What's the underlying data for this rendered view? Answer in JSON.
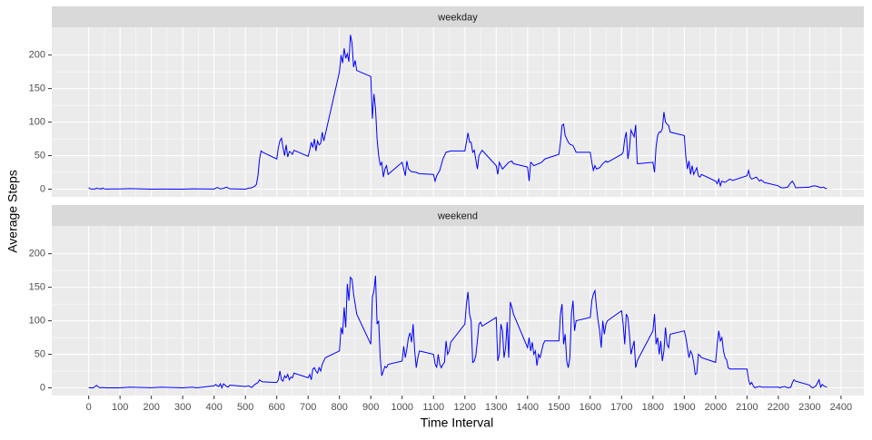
{
  "chart_data": {
    "type": "line",
    "xlabel": "Time Interval",
    "ylabel": "Average Steps",
    "color": "#0000ff",
    "xlim": [
      -117.75,
      2472.75
    ],
    "ylim": [
      -11.5,
      241.5
    ],
    "xticks": [
      0,
      100,
      200,
      300,
      400,
      500,
      600,
      700,
      800,
      900,
      1000,
      1100,
      1200,
      1300,
      1400,
      1500,
      1600,
      1700,
      1800,
      1900,
      2000,
      2100,
      2200,
      2300,
      2400
    ],
    "yticks": [
      0,
      50,
      100,
      150,
      200
    ],
    "grid": true,
    "minor_grid": true,
    "panels": [
      {
        "title": "weekday",
        "x": [
          0,
          5,
          10,
          15,
          20,
          25,
          30,
          35,
          40,
          45,
          50,
          55,
          100,
          130,
          200,
          230,
          300,
          330,
          400,
          410,
          420,
          430,
          440,
          450,
          500,
          510,
          520,
          530,
          535,
          540,
          545,
          550,
          555,
          600,
          605,
          610,
          615,
          620,
          625,
          630,
          635,
          640,
          645,
          650,
          655,
          700,
          705,
          710,
          715,
          720,
          725,
          730,
          735,
          740,
          745,
          750,
          755,
          800,
          805,
          810,
          815,
          820,
          825,
          830,
          835,
          840,
          845,
          850,
          855,
          900,
          905,
          910,
          915,
          920,
          925,
          930,
          935,
          940,
          945,
          950,
          955,
          1000,
          1005,
          1010,
          1015,
          1020,
          1030,
          1045,
          1055,
          1100,
          1105,
          1110,
          1120,
          1130,
          1140,
          1155,
          1200,
          1205,
          1210,
          1215,
          1220,
          1225,
          1230,
          1240,
          1245,
          1255,
          1300,
          1305,
          1310,
          1320,
          1330,
          1340,
          1350,
          1355,
          1400,
          1405,
          1410,
          1415,
          1420,
          1430,
          1445,
          1455,
          1500,
          1505,
          1510,
          1515,
          1520,
          1530,
          1535,
          1545,
          1555,
          1600,
          1605,
          1610,
          1615,
          1620,
          1630,
          1640,
          1650,
          1655,
          1700,
          1705,
          1710,
          1715,
          1720,
          1725,
          1730,
          1740,
          1745,
          1750,
          1755,
          1800,
          1805,
          1810,
          1815,
          1820,
          1825,
          1830,
          1835,
          1840,
          1845,
          1850,
          1855,
          1900,
          1905,
          1910,
          1915,
          1920,
          1925,
          1930,
          1940,
          1945,
          1950,
          1955,
          2000,
          2005,
          2010,
          2015,
          2020,
          2030,
          2045,
          2055,
          2100,
          2105,
          2110,
          2115,
          2120,
          2130,
          2140,
          2145,
          2155,
          2200,
          2205,
          2210,
          2220,
          2230,
          2240,
          2245,
          2250,
          2255,
          2300,
          2305,
          2315,
          2325,
          2335,
          2345,
          2350,
          2355
        ],
        "values": [
          2.3,
          0.4,
          0.2,
          0.2,
          0.1,
          1.6,
          0.6,
          1,
          0,
          1.7,
          0.4,
          0.1,
          0.4,
          0.8,
          0,
          0.2,
          0,
          0.5,
          0.2,
          2.5,
          0.4,
          1.2,
          3,
          0.5,
          0,
          1.5,
          2,
          4.5,
          7,
          20,
          45,
          57,
          55,
          45,
          62,
          72,
          76,
          62,
          50,
          66,
          48,
          56,
          55,
          52,
          58,
          49,
          58,
          70,
          62,
          75,
          57,
          72,
          66,
          68,
          85,
          72,
          82,
          175,
          200,
          188,
          210,
          195,
          202,
          190,
          230,
          218,
          182,
          192,
          177,
          168,
          105,
          142,
          120,
          75,
          50,
          36,
          40,
          18,
          30,
          35,
          22,
          40,
          30,
          20,
          42,
          30,
          26,
          25,
          23,
          22,
          12,
          20,
          28,
          45,
          55,
          57,
          57,
          70,
          84,
          70,
          70,
          55,
          58,
          30,
          50,
          58,
          35,
          22,
          40,
          30,
          35,
          40,
          42,
          38,
          33,
          12,
          40,
          38,
          35,
          37,
          40,
          45,
          52,
          70,
          95,
          97,
          80,
          70,
          67,
          65,
          55,
          55,
          40,
          28,
          35,
          30,
          32,
          38,
          42,
          40,
          52,
          55,
          75,
          85,
          45,
          60,
          88,
          78,
          96,
          38,
          38,
          40,
          25,
          63,
          80,
          85,
          85,
          90,
          115,
          100,
          97,
          95,
          85,
          80,
          48,
          30,
          42,
          22,
          35,
          22,
          32,
          20,
          18,
          22,
          12,
          8,
          15,
          5,
          12,
          10,
          15,
          13,
          20,
          28,
          18,
          15,
          16,
          18,
          12,
          14,
          10,
          5,
          3,
          2,
          2,
          3,
          10,
          12,
          8,
          2,
          3,
          4,
          5,
          4,
          2,
          3,
          1,
          1
        ]
      },
      {
        "title": "weekend",
        "x": [
          0,
          5,
          15,
          25,
          35,
          45,
          55,
          100,
          130,
          200,
          230,
          300,
          330,
          345,
          400,
          405,
          410,
          415,
          420,
          425,
          430,
          440,
          445,
          450,
          500,
          510,
          520,
          530,
          540,
          545,
          550,
          555,
          600,
          605,
          610,
          615,
          620,
          625,
          630,
          635,
          640,
          645,
          650,
          655,
          700,
          705,
          710,
          715,
          720,
          725,
          730,
          735,
          740,
          745,
          750,
          755,
          800,
          805,
          810,
          815,
          820,
          825,
          830,
          835,
          840,
          845,
          850,
          855,
          900,
          905,
          910,
          915,
          920,
          925,
          930,
          935,
          940,
          945,
          950,
          955,
          1000,
          1005,
          1010,
          1015,
          1020,
          1025,
          1030,
          1035,
          1040,
          1045,
          1050,
          1055,
          1100,
          1105,
          1110,
          1115,
          1120,
          1125,
          1130,
          1135,
          1140,
          1145,
          1150,
          1155,
          1200,
          1205,
          1210,
          1215,
          1220,
          1225,
          1230,
          1235,
          1240,
          1245,
          1250,
          1255,
          1300,
          1305,
          1310,
          1315,
          1320,
          1325,
          1330,
          1335,
          1340,
          1345,
          1350,
          1355,
          1400,
          1405,
          1410,
          1415,
          1420,
          1425,
          1430,
          1435,
          1440,
          1445,
          1450,
          1455,
          1500,
          1505,
          1510,
          1515,
          1520,
          1525,
          1530,
          1535,
          1540,
          1545,
          1550,
          1555,
          1600,
          1605,
          1610,
          1615,
          1620,
          1625,
          1630,
          1635,
          1640,
          1645,
          1650,
          1655,
          1700,
          1705,
          1710,
          1715,
          1720,
          1725,
          1730,
          1735,
          1740,
          1745,
          1750,
          1755,
          1800,
          1805,
          1810,
          1815,
          1820,
          1825,
          1830,
          1835,
          1840,
          1845,
          1850,
          1855,
          1900,
          1905,
          1910,
          1915,
          1920,
          1925,
          1930,
          1935,
          1940,
          1945,
          1950,
          1955,
          2000,
          2005,
          2010,
          2015,
          2020,
          2025,
          2030,
          2035,
          2040,
          2045,
          2050,
          2055,
          2100,
          2105,
          2110,
          2115,
          2120,
          2125,
          2130,
          2140,
          2150,
          2155,
          2200,
          2205,
          2210,
          2220,
          2230,
          2240,
          2245,
          2250,
          2255,
          2300,
          2305,
          2310,
          2320,
          2330,
          2335,
          2340,
          2345,
          2350,
          2355
        ],
        "values": [
          0.2,
          0,
          0,
          3.7,
          0,
          0.5,
          0,
          0,
          1,
          0.1,
          1,
          0,
          1,
          0,
          3,
          5,
          3,
          2,
          6,
          0,
          6,
          2,
          1,
          4,
          2,
          3,
          0.5,
          5,
          8,
          12,
          10,
          9,
          8,
          12,
          25,
          12,
          10,
          18,
          15,
          20,
          12,
          16,
          15,
          22,
          15,
          20,
          12,
          28,
          30,
          25,
          22,
          30,
          25,
          35,
          40,
          45,
          55,
          90,
          80,
          120,
          90,
          155,
          130,
          165,
          162,
          140,
          125,
          110,
          65,
          135,
          145,
          167,
          95,
          100,
          45,
          18,
          25,
          32,
          30,
          35,
          40,
          62,
          45,
          58,
          75,
          82,
          68,
          95,
          55,
          30,
          45,
          55,
          50,
          36,
          30,
          50,
          35,
          30,
          35,
          38,
          70,
          50,
          55,
          68,
          95,
          125,
          143,
          110,
          100,
          38,
          40,
          48,
          70,
          95,
          98,
          92,
          105,
          40,
          50,
          95,
          85,
          45,
          60,
          98,
          45,
          128,
          120,
          110,
          60,
          75,
          55,
          68,
          50,
          55,
          33,
          50,
          45,
          55,
          65,
          70,
          70,
          110,
          125,
          65,
          80,
          40,
          30,
          45,
          110,
          130,
          85,
          100,
          105,
          130,
          140,
          145,
          120,
          100,
          85,
          60,
          100,
          80,
          95,
          100,
          115,
          95,
          65,
          110,
          105,
          80,
          50,
          60,
          70,
          30,
          40,
          45,
          85,
          110,
          65,
          75,
          50,
          70,
          40,
          55,
          90,
          65,
          60,
          80,
          85,
          75,
          60,
          45,
          55,
          50,
          38,
          20,
          22,
          50,
          48,
          45,
          38,
          65,
          85,
          70,
          75,
          55,
          45,
          42,
          30,
          28,
          28,
          28,
          28,
          12,
          5,
          8,
          3,
          0,
          1,
          2,
          1,
          1,
          1,
          0,
          1,
          2,
          0,
          1,
          8,
          12,
          10,
          4,
          1,
          0,
          3,
          12,
          1,
          5,
          3,
          2,
          0.5
        ]
      }
    ]
  }
}
